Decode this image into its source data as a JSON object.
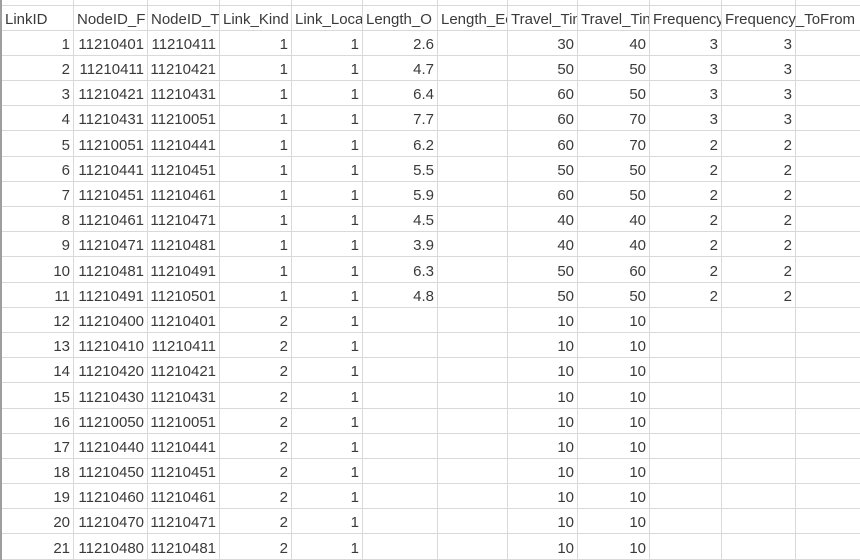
{
  "app": {
    "description": "spreadsheet grid showing transit network link table",
    "colors": {
      "background": "#ffffff",
      "grid_line": "#d9d9d9",
      "text": "#3a3a3a",
      "left_edge": "#9e9e9e"
    }
  },
  "sheet": {
    "headers": [
      "LinkID",
      "NodeID_F",
      "NodeID_T",
      "Link_Kind",
      "Link_Loca",
      "Length_O",
      "Length_Ec",
      "Travel_Tin",
      "Travel_Tin",
      "Frequency",
      "Frequency_ToFrom",
      ""
    ],
    "rows": [
      [
        "1",
        "11210401",
        "11210411",
        "1",
        "1",
        "2.6",
        "",
        "30",
        "40",
        "3",
        "3",
        ""
      ],
      [
        "2",
        "11210411",
        "11210421",
        "1",
        "1",
        "4.7",
        "",
        "50",
        "50",
        "3",
        "3",
        ""
      ],
      [
        "3",
        "11210421",
        "11210431",
        "1",
        "1",
        "6.4",
        "",
        "60",
        "50",
        "3",
        "3",
        ""
      ],
      [
        "4",
        "11210431",
        "11210051",
        "1",
        "1",
        "7.7",
        "",
        "60",
        "70",
        "3",
        "3",
        ""
      ],
      [
        "5",
        "11210051",
        "11210441",
        "1",
        "1",
        "6.2",
        "",
        "60",
        "70",
        "2",
        "2",
        ""
      ],
      [
        "6",
        "11210441",
        "11210451",
        "1",
        "1",
        "5.5",
        "",
        "50",
        "50",
        "2",
        "2",
        ""
      ],
      [
        "7",
        "11210451",
        "11210461",
        "1",
        "1",
        "5.9",
        "",
        "60",
        "50",
        "2",
        "2",
        ""
      ],
      [
        "8",
        "11210461",
        "11210471",
        "1",
        "1",
        "4.5",
        "",
        "40",
        "40",
        "2",
        "2",
        ""
      ],
      [
        "9",
        "11210471",
        "11210481",
        "1",
        "1",
        "3.9",
        "",
        "40",
        "40",
        "2",
        "2",
        ""
      ],
      [
        "10",
        "11210481",
        "11210491",
        "1",
        "1",
        "6.3",
        "",
        "50",
        "60",
        "2",
        "2",
        ""
      ],
      [
        "11",
        "11210491",
        "11210501",
        "1",
        "1",
        "4.8",
        "",
        "50",
        "50",
        "2",
        "2",
        ""
      ],
      [
        "12",
        "11210400",
        "11210401",
        "2",
        "1",
        "",
        "",
        "10",
        "10",
        "",
        "",
        ""
      ],
      [
        "13",
        "11210410",
        "11210411",
        "2",
        "1",
        "",
        "",
        "10",
        "10",
        "",
        "",
        ""
      ],
      [
        "14",
        "11210420",
        "11210421",
        "2",
        "1",
        "",
        "",
        "10",
        "10",
        "",
        "",
        ""
      ],
      [
        "15",
        "11210430",
        "11210431",
        "2",
        "1",
        "",
        "",
        "10",
        "10",
        "",
        "",
        ""
      ],
      [
        "16",
        "11210050",
        "11210051",
        "2",
        "1",
        "",
        "",
        "10",
        "10",
        "",
        "",
        ""
      ],
      [
        "17",
        "11210440",
        "11210441",
        "2",
        "1",
        "",
        "",
        "10",
        "10",
        "",
        "",
        ""
      ],
      [
        "18",
        "11210450",
        "11210451",
        "2",
        "1",
        "",
        "",
        "10",
        "10",
        "",
        "",
        ""
      ],
      [
        "19",
        "11210460",
        "11210461",
        "2",
        "1",
        "",
        "",
        "10",
        "10",
        "",
        "",
        ""
      ],
      [
        "20",
        "11210470",
        "11210471",
        "2",
        "1",
        "",
        "",
        "10",
        "10",
        "",
        "",
        ""
      ],
      [
        "21",
        "11210480",
        "11210481",
        "2",
        "1",
        "",
        "",
        "10",
        "10",
        "",
        "",
        ""
      ]
    ]
  }
}
